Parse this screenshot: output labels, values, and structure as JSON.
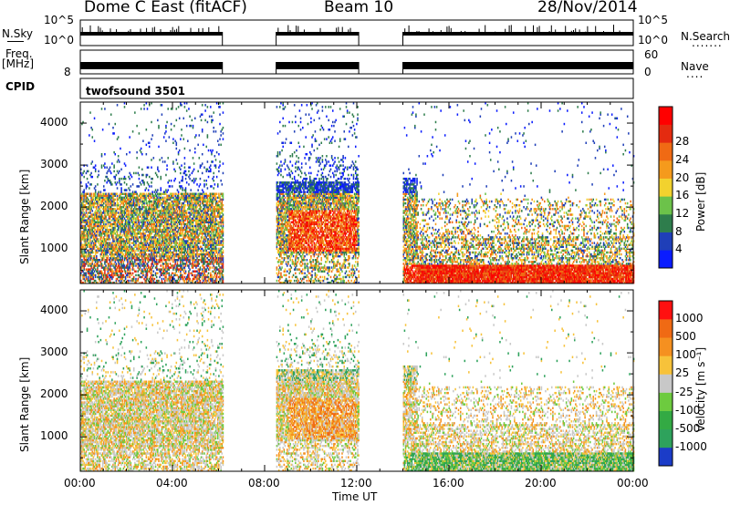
{
  "header": {
    "station": "Dome C East (fitACF)",
    "beam": "Beam 10",
    "date": "28/Nov/2014"
  },
  "left_labels": {
    "nsky": "N.Sky",
    "freq": "Freq.",
    "freq_unit": "[MHz]",
    "cpid": "CPID"
  },
  "right_labels": {
    "nsearch": "N.Search",
    "nave": "Nave"
  },
  "strip_ticks": {
    "nsky_top": "10^5",
    "nsky_bottom": "10^0",
    "freq_top": "",
    "freq_bottom": "8",
    "nave_top": "60",
    "nave_bottom": "0"
  },
  "cpid_text": "twofsound 3501",
  "axes": {
    "xlabel": "Time UT",
    "ylabel": "Slant Range [km]",
    "x_ticks": [
      "00:00",
      "04:00",
      "08:00",
      "12:00",
      "16:00",
      "20:00",
      "00:00"
    ],
    "y_ticks": [
      "1000",
      "2000",
      "3000",
      "4000"
    ]
  },
  "power_colorbar": {
    "label": "Power [dB]",
    "ticks": [
      "4",
      "8",
      "12",
      "16",
      "20",
      "24",
      "28"
    ],
    "colors": [
      "#0a1cff",
      "#1f3fb8",
      "#2e7d4c",
      "#6cc24a",
      "#f2d22e",
      "#f59a1c",
      "#f06a14",
      "#e42b10",
      "#ff0000"
    ]
  },
  "velocity_colorbar": {
    "label": "Velocity [m s⁻¹]",
    "ticks": [
      "1000",
      "500",
      "100",
      "25",
      "-25",
      "-100",
      "-500",
      "-1000"
    ],
    "colors": [
      "#1b3cc8",
      "#2ea25c",
      "#33aa44",
      "#6dcb3f",
      "#c8c8c8",
      "#f7c23a",
      "#f59020",
      "#f06a14",
      "#ff1010"
    ]
  },
  "chart_data": [
    {
      "type": "line",
      "title": "",
      "ylabel": "N.Sky",
      "x": [
        "00:00",
        "06:00",
        "08:30",
        "12:00",
        "14:00",
        "24:00"
      ],
      "operating_intervals_ut": [
        [
          "00:00",
          "06:10"
        ],
        [
          "08:30",
          "12:05"
        ],
        [
          "14:00",
          "24:00"
        ]
      ]
    },
    {
      "type": "heatmap",
      "title": "Power",
      "xlabel": "Time UT",
      "ylabel": "Slant Range [km]",
      "xlim": [
        "00:00",
        "24:00"
      ],
      "ylim": [
        180,
        4500
      ],
      "colorbar": "Power [dB]",
      "colorbar_range": [
        0,
        30
      ],
      "data_gaps_ut": [
        [
          "06:10",
          "08:30"
        ],
        [
          "12:05",
          "14:00"
        ]
      ]
    },
    {
      "type": "heatmap",
      "title": "Velocity",
      "xlabel": "Time UT",
      "ylabel": "Slant Range [km]",
      "xlim": [
        "00:00",
        "24:00"
      ],
      "ylim": [
        180,
        4500
      ],
      "colorbar": "Velocity [m s⁻¹]",
      "colorbar_range": [
        -1000,
        1000
      ],
      "data_gaps_ut": [
        [
          "06:10",
          "08:30"
        ],
        [
          "12:05",
          "14:00"
        ]
      ]
    }
  ]
}
